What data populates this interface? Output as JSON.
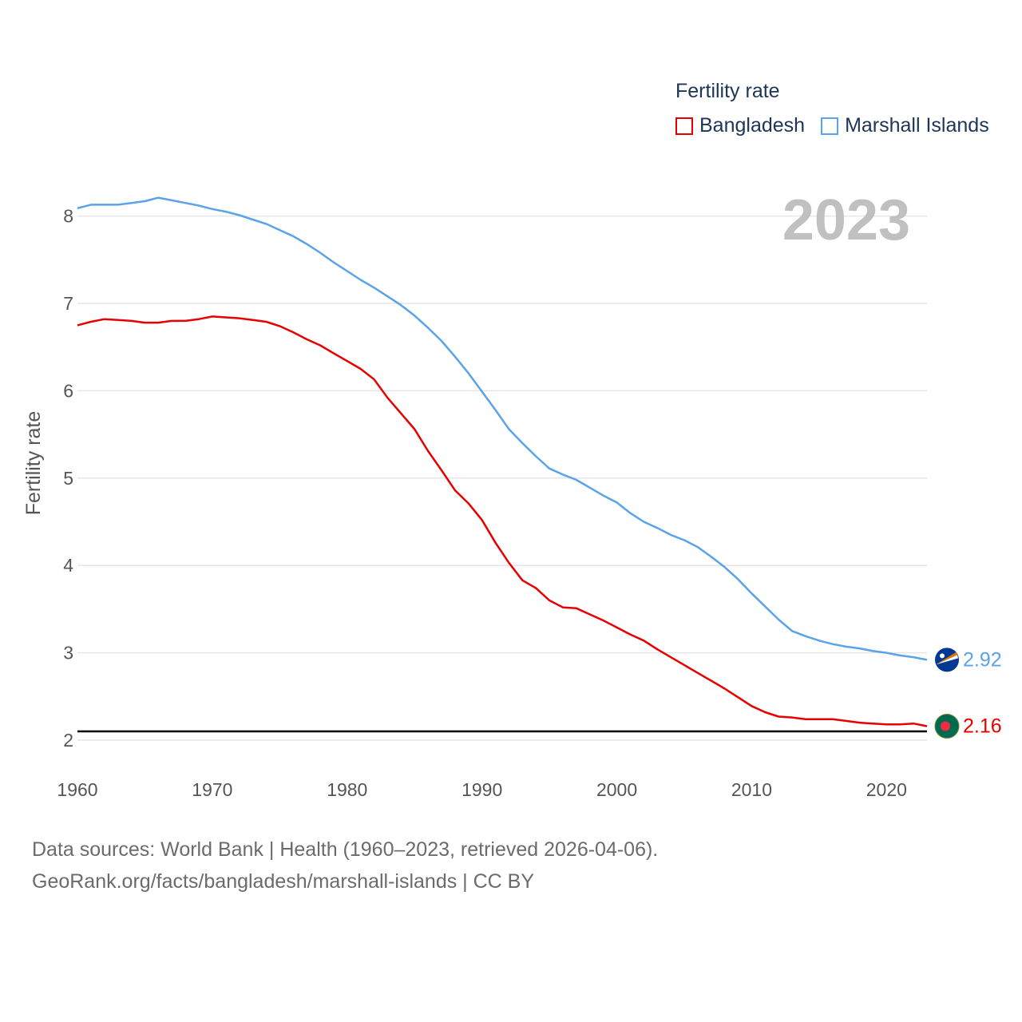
{
  "legend": {
    "title": "Fertility rate",
    "items": [
      {
        "label": "Bangladesh",
        "color": "#e60000"
      },
      {
        "label": "Marshall Islands",
        "color": "#5ba3e8"
      }
    ]
  },
  "footer": {
    "line1": "Data sources: World Bank | Health (1960–2023, retrieved 2026-04-06).",
    "line2": "GeoRank.org/facts/bangladesh/marshall-islands | CC BY"
  },
  "chart_data": {
    "type": "line",
    "title": "Fertility rate",
    "year_label": "2023",
    "xlabel": "",
    "ylabel": "Fertility rate",
    "xlim": [
      1960,
      2023
    ],
    "ylim": [
      2,
      8.5
    ],
    "xticks": [
      1960,
      1970,
      1980,
      1990,
      2000,
      2010,
      2020
    ],
    "yticks": [
      2,
      3,
      4,
      5,
      6,
      7,
      8
    ],
    "reference_line": 2.1,
    "x": [
      1960,
      1961,
      1962,
      1963,
      1964,
      1965,
      1966,
      1967,
      1968,
      1969,
      1970,
      1971,
      1972,
      1973,
      1974,
      1975,
      1976,
      1977,
      1978,
      1979,
      1980,
      1981,
      1982,
      1983,
      1984,
      1985,
      1986,
      1987,
      1988,
      1989,
      1990,
      1991,
      1992,
      1993,
      1994,
      1995,
      1996,
      1997,
      1998,
      1999,
      2000,
      2001,
      2002,
      2003,
      2004,
      2005,
      2006,
      2007,
      2008,
      2009,
      2010,
      2011,
      2012,
      2013,
      2014,
      2015,
      2016,
      2017,
      2018,
      2019,
      2020,
      2021,
      2022,
      2023
    ],
    "series": [
      {
        "name": "Bangladesh",
        "color": "#e60000",
        "end_label": "2.16",
        "values": [
          6.75,
          6.79,
          6.82,
          6.81,
          6.8,
          6.78,
          6.78,
          6.8,
          6.8,
          6.82,
          6.85,
          6.84,
          6.83,
          6.81,
          6.79,
          6.74,
          6.67,
          6.59,
          6.52,
          6.43,
          6.34,
          6.25,
          6.13,
          5.92,
          5.74,
          5.56,
          5.31,
          5.09,
          4.86,
          4.71,
          4.52,
          4.26,
          4.03,
          3.83,
          3.74,
          3.6,
          3.52,
          3.51,
          3.44,
          3.37,
          3.29,
          3.21,
          3.14,
          3.04,
          2.95,
          2.86,
          2.77,
          2.68,
          2.59,
          2.49,
          2.39,
          2.32,
          2.27,
          2.26,
          2.24,
          2.24,
          2.24,
          2.22,
          2.2,
          2.19,
          2.18,
          2.18,
          2.19,
          2.16
        ]
      },
      {
        "name": "Marshall Islands",
        "color": "#5ba3e8",
        "end_label": "2.92",
        "values": [
          8.09,
          8.13,
          8.13,
          8.13,
          8.15,
          8.17,
          8.21,
          8.18,
          8.15,
          8.12,
          8.08,
          8.05,
          8.01,
          7.96,
          7.91,
          7.84,
          7.77,
          7.68,
          7.58,
          7.47,
          7.37,
          7.27,
          7.18,
          7.08,
          6.98,
          6.86,
          6.72,
          6.57,
          6.39,
          6.2,
          5.99,
          5.78,
          5.56,
          5.4,
          5.25,
          5.11,
          5.04,
          4.98,
          4.89,
          4.8,
          4.72,
          4.6,
          4.5,
          4.43,
          4.35,
          4.29,
          4.21,
          4.1,
          3.98,
          3.84,
          3.68,
          3.53,
          3.38,
          3.25,
          3.19,
          3.14,
          3.1,
          3.07,
          3.05,
          3.02,
          3.0,
          2.97,
          2.95,
          2.92
        ]
      }
    ]
  }
}
